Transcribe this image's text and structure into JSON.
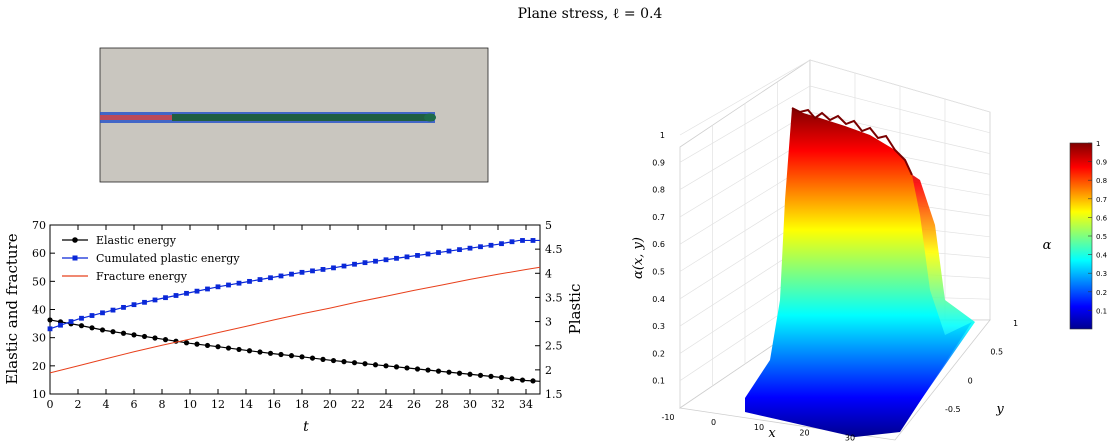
{
  "figure_title": "Plane stress, ℓ = 0.4",
  "chart_data": [
    {
      "type": "line",
      "xlabel": "t",
      "ylabel_left": "Elastic and fracture",
      "ylabel_right": "Plastic",
      "xlim": [
        0,
        35
      ],
      "ylim_left": [
        10,
        70
      ],
      "ylim_right": [
        1.5,
        5
      ],
      "x_ticks": [
        "0",
        "2",
        "4",
        "6",
        "8",
        "10",
        "12",
        "14",
        "16",
        "18",
        "20",
        "22",
        "24",
        "26",
        "28",
        "30",
        "32",
        "34"
      ],
      "y_left_ticks": [
        "10",
        "20",
        "30",
        "40",
        "50",
        "60",
        "70"
      ],
      "y_right_ticks": [
        "1.5",
        "2",
        "2.5",
        "3",
        "3.5",
        "4",
        "4.5",
        "5"
      ],
      "legend_position": "top-left",
      "grid": false,
      "series": [
        {
          "name": "Elastic energy",
          "axis": "left",
          "color": "#000000",
          "marker": "circle",
          "x": [
            0,
            2,
            4,
            6,
            8,
            10,
            12,
            14,
            16,
            18,
            20,
            22,
            24,
            26,
            28,
            30,
            32,
            34,
            35
          ],
          "y": [
            36.3,
            34.5,
            32.5,
            31.0,
            29.5,
            28.0,
            26.8,
            25.5,
            24.3,
            23.2,
            22.0,
            21.0,
            20.0,
            19.0,
            18.0,
            17.0,
            16.0,
            14.8,
            14.5
          ]
        },
        {
          "name": "Cumulated plastic energy",
          "axis": "right",
          "color": "#0a28d8",
          "marker": "square",
          "x": [
            0,
            2,
            4,
            6,
            8,
            10,
            12,
            14,
            16,
            18,
            20,
            22,
            24,
            26,
            28,
            30,
            32,
            33.5,
            35
          ],
          "y": [
            2.85,
            3.05,
            3.2,
            3.35,
            3.48,
            3.6,
            3.72,
            3.82,
            3.92,
            4.02,
            4.1,
            4.2,
            4.28,
            4.36,
            4.44,
            4.52,
            4.6,
            4.68,
            4.68
          ]
        },
        {
          "name": "Fracture energy",
          "axis": "left",
          "color": "#e8401c",
          "marker": "none",
          "x": [
            0,
            2,
            4,
            6,
            8,
            10,
            12,
            14,
            16,
            18,
            20,
            22,
            24,
            26,
            28,
            30,
            32,
            34,
            35
          ],
          "y": [
            17.5,
            20.0,
            22.5,
            25.0,
            27.3,
            29.5,
            31.8,
            34.0,
            36.3,
            38.5,
            40.5,
            42.7,
            44.7,
            46.8,
            48.7,
            50.7,
            52.5,
            54.2,
            55.0
          ]
        }
      ]
    },
    {
      "type": "surface3d",
      "xlabel": "x",
      "ylabel": "y",
      "zlabel": "α(x, y)",
      "x_ticks": [
        "-10",
        "0",
        "10",
        "20",
        "30"
      ],
      "y_ticks": [
        "-0.5",
        "0",
        "0.5",
        "1"
      ],
      "z_ticks": [
        "0.1",
        "0.2",
        "0.3",
        "0.4",
        "0.5",
        "0.6",
        "0.7",
        "0.8",
        "0.9",
        "1"
      ],
      "colormap": "jet",
      "colorbar_ticks": [
        "0.1",
        "0.2",
        "0.3",
        "0.4",
        "0.5",
        "0.6",
        "0.7",
        "0.8",
        "0.9",
        "1"
      ],
      "colorbar_label": "α",
      "zlim": [
        0,
        1
      ]
    }
  ],
  "image_panel": {
    "background": "#c9c6bf",
    "crack_colors": [
      "#1c4fd0",
      "#d04040",
      "#1e5e3c"
    ]
  }
}
